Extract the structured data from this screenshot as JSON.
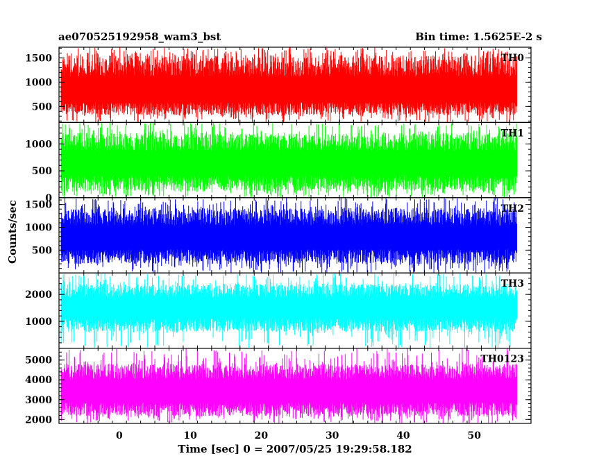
{
  "header": {
    "title": "ae070525192958_wam3_bst",
    "bin_time": "Bin time: 1.5625E-2 s"
  },
  "chart_data": {
    "type": "line",
    "xlabel": "Time [sec] 0 = 2007/05/25 19:29:58.182",
    "ylabel": "Counts/sec",
    "xlim": [
      -8.5,
      58
    ],
    "x_ticks": [
      0,
      10,
      20,
      30,
      40,
      50
    ],
    "data_x_range": [
      -8.2,
      56
    ],
    "grid": false,
    "panels": [
      {
        "name": "TH0",
        "color": "#ff0000",
        "ylim": [
          170,
          1720
        ],
        "yticks": [
          500,
          1000,
          1500
        ],
        "mean": 760,
        "low": 320,
        "high": 1550,
        "spike_max": 1720
      },
      {
        "name": "TH1",
        "color": "#00ff00",
        "ylim": [
          0,
          1400
        ],
        "yticks": [
          0,
          500,
          1000
        ],
        "mean": 600,
        "low": 120,
        "high": 1200,
        "spike_max": 1400
      },
      {
        "name": "TH2",
        "color": "#0000ff",
        "ylim": [
          0,
          1650
        ],
        "yticks": [
          500,
          1000,
          1500
        ],
        "mean": 730,
        "low": 200,
        "high": 1420,
        "spike_max": 1650
      },
      {
        "name": "TH3",
        "color": "#00ffff",
        "ylim": [
          0,
          2800
        ],
        "yticks": [
          1000,
          2000
        ],
        "mean": 1450,
        "low": 600,
        "high": 2400,
        "spike_max": 2800
      },
      {
        "name": "TH0123",
        "color": "#ff00ff",
        "ylim": [
          1800,
          5600
        ],
        "yticks": [
          2000,
          3000,
          4000,
          5000
        ],
        "mean": 3350,
        "low": 2150,
        "high": 4800,
        "spike_max": 5600
      }
    ]
  }
}
